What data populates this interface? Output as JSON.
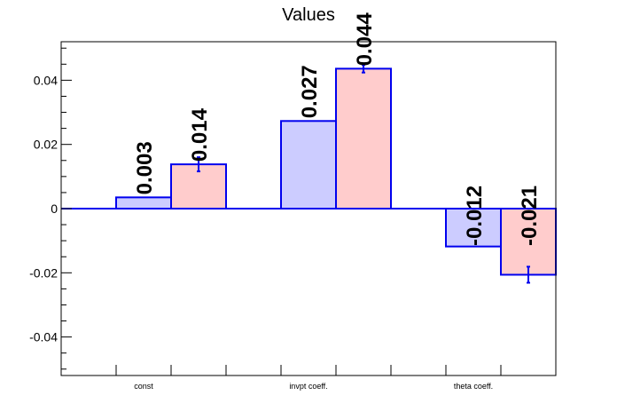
{
  "chart_data": {
    "type": "bar",
    "title": "Values",
    "categories": [
      "const",
      "invpt coeff.",
      "theta coeff."
    ],
    "series": [
      {
        "values": [
          0.0035,
          0.0273,
          -0.0118
        ],
        "errors": [
          0.0,
          0.0,
          0.0
        ],
        "labels": [
          "0.003",
          "0.027",
          "-0.012"
        ],
        "color": "#ccccff"
      },
      {
        "values": [
          0.0138,
          0.0436,
          -0.0206
        ],
        "errors": [
          0.0022,
          0.0012,
          0.0025
        ],
        "labels": [
          "0.014",
          "0.044",
          "-0.021"
        ],
        "color": "#ffcccc"
      }
    ],
    "ylim": [
      -0.052,
      0.052
    ],
    "yticks": [
      "-0.04",
      "-0.02",
      "0",
      "0.02",
      "0.04"
    ],
    "ytick_values": [
      -0.04,
      -0.02,
      0,
      0.02,
      0.04
    ],
    "grid": false,
    "outline_color": "#0000ee",
    "xlabel": "",
    "ylabel": ""
  }
}
